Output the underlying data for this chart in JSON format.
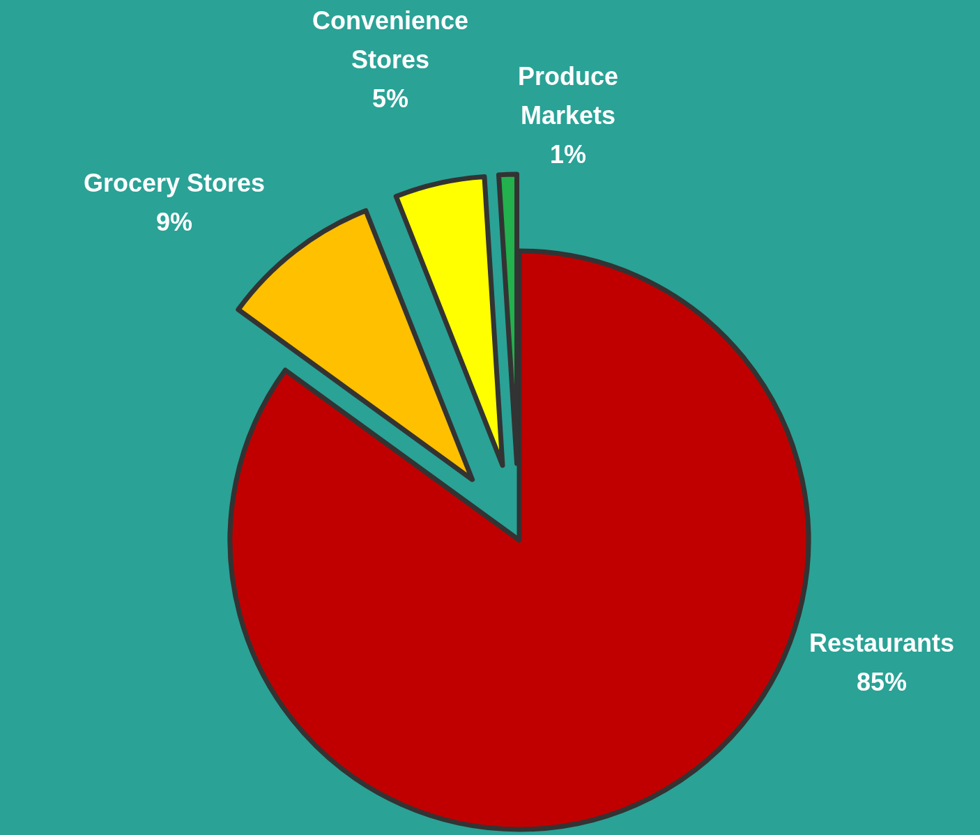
{
  "chart_data": {
    "type": "pie",
    "categories": [
      "Restaurants",
      "Grocery Stores",
      "Convenience Stores",
      "Produce Markets"
    ],
    "values": [
      85,
      9,
      5,
      1
    ],
    "colors": [
      "#c00000",
      "#ffc000",
      "#ffff00",
      "#22b14c"
    ],
    "value_labels": [
      "85%",
      "9%",
      "5%",
      "1%"
    ],
    "legend": false
  }
}
